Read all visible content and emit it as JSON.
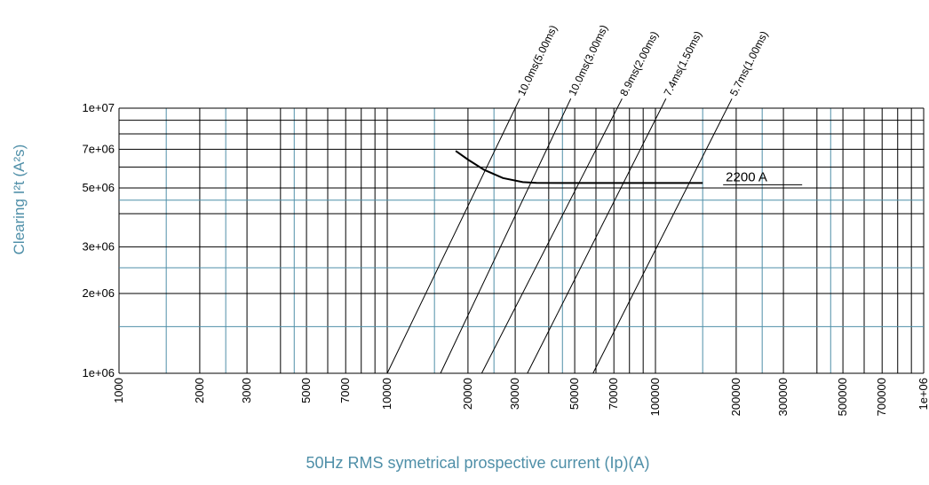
{
  "chart_data": {
    "type": "line",
    "title": "",
    "xlabel": "50Hz RMS symetrical prospective current (Ip)(A)",
    "ylabel": "Clearing I²t (A²s)",
    "xscale": "log",
    "yscale": "log",
    "xlim": [
      1000,
      1000000
    ],
    "ylim": [
      1000000,
      10000000
    ],
    "grid": true,
    "x_tick_labels": [
      "1000",
      "2000",
      "3000",
      "5000",
      "7000",
      "10000",
      "20000",
      "30000",
      "50000",
      "70000",
      "100000",
      "200000",
      "300000",
      "500000",
      "700000",
      "1e+06"
    ],
    "x_tick_values": [
      1000,
      2000,
      3000,
      5000,
      7000,
      10000,
      20000,
      30000,
      50000,
      70000,
      100000,
      200000,
      300000,
      500000,
      700000,
      1000000
    ],
    "y_tick_labels": [
      "1e+06",
      "2e+06",
      "3e+06",
      "5e+06",
      "7e+06",
      "1e+07"
    ],
    "y_tick_values": [
      1000000,
      2000000,
      3000000,
      5000000,
      7000000,
      10000000
    ],
    "series": [
      {
        "name": "2200 A",
        "x": [
          18000,
          20000,
          23000,
          27000,
          32000,
          36000,
          45000,
          70000,
          150000
        ],
        "y": [
          6900000,
          6400000,
          5850000,
          5450000,
          5260000,
          5230000,
          5220000,
          5220000,
          5220000
        ]
      }
    ],
    "reference_lines": [
      {
        "label": "10.0ms(5.00ms)",
        "x": [
          10000,
          30000
        ],
        "y": [
          1000000,
          10000000
        ]
      },
      {
        "label": "10.0ms(3.00ms)",
        "x": [
          15800,
          46500
        ],
        "y": [
          1000000,
          10000000
        ]
      },
      {
        "label": "8.9ms(2.00ms)",
        "x": [
          22500,
          72000
        ],
        "y": [
          1000000,
          10000000
        ]
      },
      {
        "label": "7.4ms(1.50ms)",
        "x": [
          33300,
          105000
        ],
        "y": [
          1000000,
          10000000
        ]
      },
      {
        "label": "5.7ms(1.00ms)",
        "x": [
          58500,
          185000
        ],
        "y": [
          1000000,
          10000000
        ]
      }
    ]
  },
  "colors": {
    "major_grid": "#000000",
    "minor_grid": "#4f8fa8",
    "axis_title": "#4f8fa8",
    "tick_text": "#000000",
    "curve": "#000000"
  }
}
